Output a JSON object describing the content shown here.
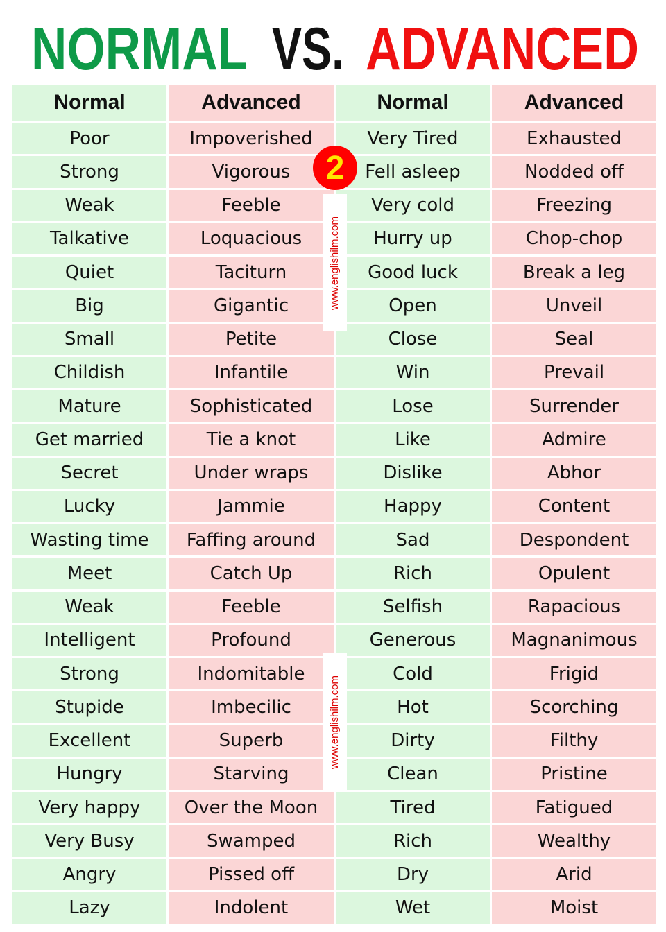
{
  "header": {
    "title": {
      "part1": "NORMAL",
      "part2": "VS.",
      "part3": "ADVANCED"
    }
  },
  "badge": "2",
  "watermarks": [
    "www.englishilm.com",
    "www.englishilm.com"
  ],
  "table": {
    "columns": [
      "Normal",
      "Advanced",
      "Normal",
      "Advanced"
    ],
    "rows": [
      [
        "Poor",
        "Impoverished",
        "Very Tired",
        "Exhausted"
      ],
      [
        "Strong",
        "Vigorous",
        "Fell asleep",
        "Nodded off"
      ],
      [
        "Weak",
        "Feeble",
        "Very cold",
        "Freezing"
      ],
      [
        "Talkative",
        "Loquacious",
        "Hurry up",
        "Chop-chop"
      ],
      [
        "Quiet",
        "Taciturn",
        "Good luck",
        "Break a leg"
      ],
      [
        "Big",
        "Gigantic",
        "Open",
        "Unveil"
      ],
      [
        "Small",
        "Petite",
        "Close",
        "Seal"
      ],
      [
        "Childish",
        "Infantile",
        "Win",
        "Prevail"
      ],
      [
        "Mature",
        "Sophisticated",
        "Lose",
        "Surrender"
      ],
      [
        "Get married",
        "Tie a knot",
        "Like",
        "Admire"
      ],
      [
        "Secret",
        "Under wraps",
        "Dislike",
        "Abhor"
      ],
      [
        "Lucky",
        "Jammie",
        "Happy",
        "Content"
      ],
      [
        "Wasting time",
        "Faffing around",
        "Sad",
        "Despondent"
      ],
      [
        "Meet",
        "Catch Up",
        "Rich",
        "Opulent"
      ],
      [
        "Weak",
        "Feeble",
        "Selfish",
        "Rapacious"
      ],
      [
        "Intelligent",
        "Profound",
        "Generous",
        "Magnanimous"
      ],
      [
        "Strong",
        "Indomitable",
        "Cold",
        "Frigid"
      ],
      [
        "Stupide",
        "Imbecilic",
        "Hot",
        "Scorching"
      ],
      [
        "Excellent",
        "Superb",
        "Dirty",
        "Filthy"
      ],
      [
        "Hungry",
        "Starving",
        "Clean",
        "Pristine"
      ],
      [
        "Very happy",
        "Over the Moon",
        "Tired",
        "Fatigued"
      ],
      [
        "Very Busy",
        "Swamped",
        "Rich",
        "Wealthy"
      ],
      [
        "Angry",
        "Pissed off",
        "Dry",
        "Arid"
      ],
      [
        "Lazy",
        "Indolent",
        "Wet",
        "Moist"
      ]
    ]
  }
}
